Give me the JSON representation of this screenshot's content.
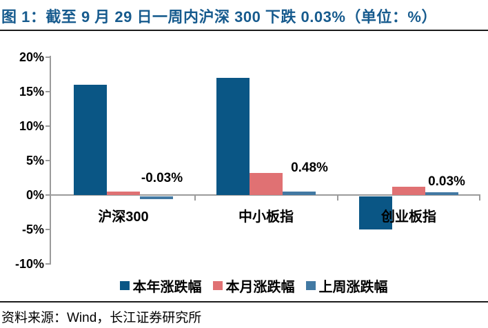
{
  "title": {
    "text": "图 1：截至 9 月 29 日一周内沪深 300 下跌 0.03%（单位：%）"
  },
  "source": {
    "text": "资料来源：Wind，长江证券研究所"
  },
  "colors": {
    "title_blue": "#175b8e",
    "series_year": "#0a5685",
    "series_month": "#e07173",
    "series_week": "#4279a3",
    "axis_gray": "#9a9a9a"
  },
  "chart_data": {
    "type": "bar",
    "unit": "%",
    "categories": [
      "沪深300",
      "中小板指",
      "创业板指"
    ],
    "series": [
      {
        "name": "本年涨跌幅",
        "color": "#0a5685",
        "values": [
          16.0,
          17.0,
          -4.8
        ]
      },
      {
        "name": "本月涨跌幅",
        "color": "#e07173",
        "values": [
          0.5,
          3.2,
          1.2
        ]
      },
      {
        "name": "上周涨跌幅",
        "color": "#4279a3",
        "values": [
          -0.03,
          0.48,
          0.03
        ]
      }
    ],
    "annotations": [
      {
        "series": "上周涨跌幅",
        "category": "沪深300",
        "text": "-0.03%"
      },
      {
        "series": "上周涨跌幅",
        "category": "中小板指",
        "text": "0.48%"
      },
      {
        "series": "上周涨跌幅",
        "category": "创业板指",
        "text": "0.03%"
      }
    ],
    "yticks": [
      "20%",
      "15%",
      "10%",
      "5%",
      "0%",
      "-5%",
      "-10%"
    ],
    "ylim": [
      -10,
      20
    ],
    "grid": false,
    "legend_position": "bottom"
  }
}
